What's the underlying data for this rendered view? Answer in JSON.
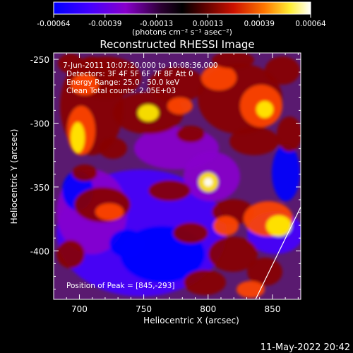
{
  "colorbar": {
    "tick_labels": [
      "-0.00064",
      "-0.00039",
      "-0.00013",
      "0.00013",
      "0.00039",
      "0.00064"
    ],
    "unit_label": "(photons cm⁻² s⁻¹ asec⁻²)",
    "range": [
      -0.00064,
      0.00064
    ],
    "colors": [
      "#0000ff",
      "#4400ff",
      "#8800cc",
      "#000000",
      "#880000",
      "#ff4400",
      "#ffee00",
      "#ffffff"
    ]
  },
  "image": {
    "title": "Reconstructed RHESSI Image",
    "info_lines": [
      "7-Jun-2011 10:07:20.000 to 10:08:36.000",
      "Detectors: 3F 4F 5F 6F 7F 8F  Att 0",
      "Energy Range: 25.0 - 50.0 keV",
      "Clean     Total counts: 2.05E+03"
    ],
    "peak_label": "Position of Peak = [845,-293]",
    "x_axis": {
      "label": "Heliocentric X (arcsec)",
      "ticks": [
        "700",
        "750",
        "800",
        "850"
      ],
      "tick_values": [
        700,
        750,
        800,
        850
      ],
      "range": [
        680,
        872
      ]
    },
    "y_axis": {
      "label": "Heliocentric Y (arcsec)",
      "ticks": [
        "-250",
        "-300",
        "-350",
        "-400"
      ],
      "tick_values": [
        -250,
        -300,
        -350,
        -400
      ],
      "range": [
        -245,
        -438
      ]
    }
  },
  "timestamp": "11-May-2022 20:42"
}
